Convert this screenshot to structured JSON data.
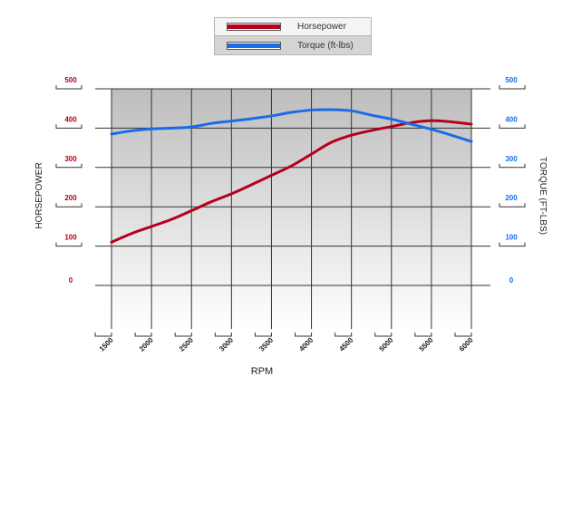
{
  "chart_data": {
    "type": "line",
    "xlabel": "RPM",
    "ylabel_left": "HORSEPOWER",
    "ylabel_right": "TORQUE (FT-LBS)",
    "x_ticks": [
      "1500",
      "2000",
      "2500",
      "3000",
      "3500",
      "4000",
      "4500",
      "5000",
      "5500",
      "6000"
    ],
    "xlim": [
      1500,
      6000
    ],
    "y_left_ticks": [
      "0",
      "100",
      "200",
      "300",
      "400",
      "500"
    ],
    "y_right_ticks": [
      "0",
      "100",
      "200",
      "300",
      "400",
      "500"
    ],
    "ylim": [
      0,
      500
    ],
    "grid": true,
    "legend_position": "top-center",
    "series": [
      {
        "name": "Horsepower",
        "color": "#b5001e",
        "axis": "left",
        "x": [
          1500,
          1750,
          2000,
          2250,
          2500,
          2750,
          3000,
          3250,
          3500,
          3750,
          4000,
          4250,
          4500,
          4750,
          5000,
          5250,
          5500,
          5750,
          6000
        ],
        "y": [
          110,
          132,
          150,
          168,
          190,
          213,
          233,
          256,
          280,
          304,
          334,
          364,
          382,
          394,
          404,
          414,
          419,
          416,
          410
        ]
      },
      {
        "name": "Torque (ft-lbs)",
        "color": "#1a6be8",
        "axis": "right",
        "x": [
          1500,
          1750,
          2000,
          2250,
          2500,
          2750,
          3000,
          3250,
          3500,
          3750,
          4000,
          4250,
          4500,
          4750,
          5000,
          5250,
          5500,
          5750,
          6000
        ],
        "y": [
          385,
          393,
          398,
          400,
          403,
          412,
          418,
          424,
          431,
          440,
          446,
          447,
          444,
          433,
          423,
          410,
          397,
          382,
          366
        ]
      }
    ]
  },
  "legend": [
    {
      "label": "Horsepower",
      "color": "#b5001e"
    },
    {
      "label": "Torque (ft-lbs)",
      "color": "#1a6be8"
    }
  ]
}
